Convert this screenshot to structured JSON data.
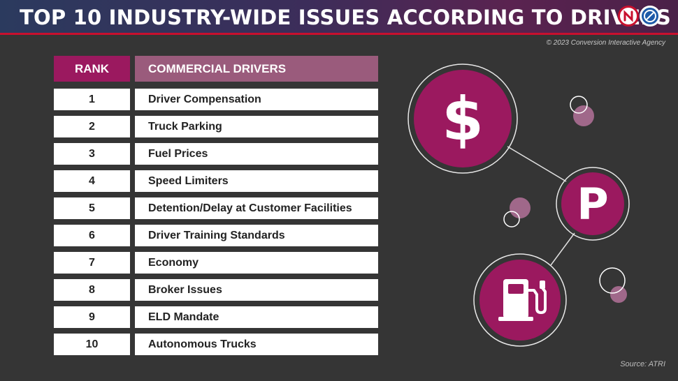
{
  "header": {
    "title": "TOP 10 INDUSTRY-WIDE ISSUES ACCORDING TO DRIVERS"
  },
  "copyright": "© 2023 Conversion Interactive Agency",
  "source": "Source: ATRI",
  "table": {
    "headers": {
      "rank": "RANK",
      "drivers": "COMMERCIAL DRIVERS"
    },
    "rows": [
      {
        "rank": "1",
        "issue": "Driver Compensation"
      },
      {
        "rank": "2",
        "issue": "Truck Parking"
      },
      {
        "rank": "3",
        "issue": "Fuel Prices"
      },
      {
        "rank": "4",
        "issue": "Speed Limiters"
      },
      {
        "rank": "5",
        "issue": "Detention/Delay at Customer Facilities"
      },
      {
        "rank": "6",
        "issue": "Driver Training Standards"
      },
      {
        "rank": "7",
        "issue": "Economy"
      },
      {
        "rank": "8",
        "issue": "Broker Issues"
      },
      {
        "rank": "9",
        "issue": "ELD Mandate"
      },
      {
        "rank": "10",
        "issue": "Autonomous Trucks"
      }
    ]
  },
  "icons": {
    "dollar": "$",
    "parking": "P",
    "fuel": "fuel-pump-icon"
  },
  "colors": {
    "background": "#353535",
    "accent_magenta": "#9b195f",
    "header_mauve": "#9a5b7c",
    "bubble_pink": "#a0688a",
    "rule_red": "#c8102e"
  }
}
